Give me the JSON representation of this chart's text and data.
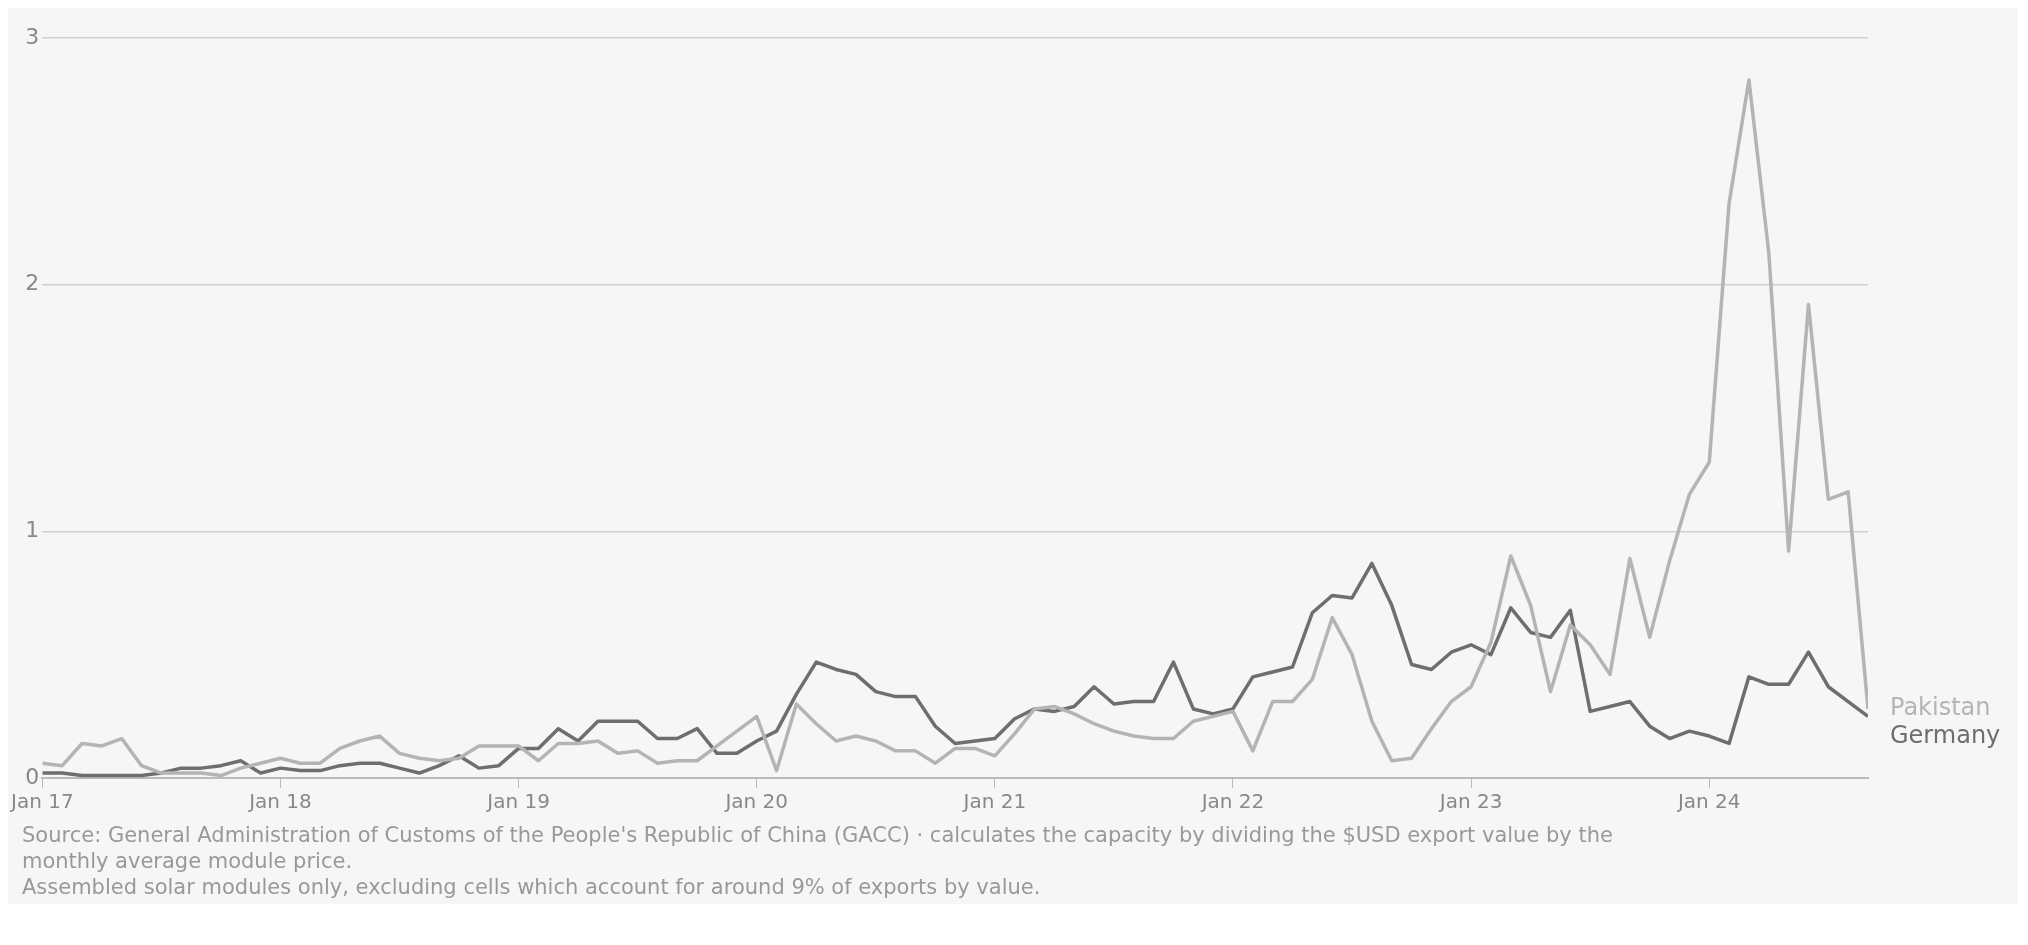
{
  "chart_data": {
    "type": "line",
    "x": [
      "2017-01",
      "2017-02",
      "2017-03",
      "2017-04",
      "2017-05",
      "2017-06",
      "2017-07",
      "2017-08",
      "2017-09",
      "2017-10",
      "2017-11",
      "2017-12",
      "2018-01",
      "2018-02",
      "2018-03",
      "2018-04",
      "2018-05",
      "2018-06",
      "2018-07",
      "2018-08",
      "2018-09",
      "2018-10",
      "2018-11",
      "2018-12",
      "2019-01",
      "2019-02",
      "2019-03",
      "2019-04",
      "2019-05",
      "2019-06",
      "2019-07",
      "2019-08",
      "2019-09",
      "2019-10",
      "2019-11",
      "2019-12",
      "2020-01",
      "2020-02",
      "2020-03",
      "2020-04",
      "2020-05",
      "2020-06",
      "2020-07",
      "2020-08",
      "2020-09",
      "2020-10",
      "2020-11",
      "2020-12",
      "2021-01",
      "2021-02",
      "2021-03",
      "2021-04",
      "2021-05",
      "2021-06",
      "2021-07",
      "2021-08",
      "2021-09",
      "2021-10",
      "2021-11",
      "2021-12",
      "2022-01",
      "2022-02",
      "2022-03",
      "2022-04",
      "2022-05",
      "2022-06",
      "2022-07",
      "2022-08",
      "2022-09",
      "2022-10",
      "2022-11",
      "2022-12",
      "2023-01",
      "2023-02",
      "2023-03",
      "2023-04",
      "2023-05",
      "2023-06",
      "2023-07",
      "2023-08",
      "2023-09",
      "2023-10",
      "2023-11",
      "2023-12",
      "2024-01",
      "2024-02",
      "2024-03",
      "2024-04",
      "2024-05",
      "2024-06",
      "2024-07",
      "2024-08",
      "2024-09"
    ],
    "series": [
      {
        "name": "Pakistan",
        "color": "#b4b4b4",
        "values": [
          0.06,
          0.05,
          0.14,
          0.13,
          0.16,
          0.05,
          0.02,
          0.02,
          0.02,
          0.01,
          0.04,
          0.06,
          0.08,
          0.06,
          0.06,
          0.12,
          0.15,
          0.17,
          0.1,
          0.08,
          0.07,
          0.08,
          0.13,
          0.13,
          0.13,
          0.07,
          0.14,
          0.14,
          0.15,
          0.1,
          0.11,
          0.06,
          0.07,
          0.07,
          0.13,
          0.19,
          0.25,
          0.03,
          0.3,
          0.22,
          0.15,
          0.17,
          0.15,
          0.11,
          0.11,
          0.06,
          0.12,
          0.12,
          0.09,
          0.18,
          0.28,
          0.29,
          0.26,
          0.22,
          0.19,
          0.17,
          0.16,
          0.16,
          0.23,
          0.25,
          0.27,
          0.11,
          0.31,
          0.31,
          0.4,
          0.65,
          0.5,
          0.23,
          0.07,
          0.08,
          0.2,
          0.31,
          0.37,
          0.55,
          0.9,
          0.7,
          0.35,
          0.62,
          0.54,
          0.42,
          0.89,
          0.57,
          0.88,
          1.15,
          1.28,
          2.33,
          2.83,
          2.13,
          0.92,
          1.92,
          1.13,
          1.16,
          0.28
        ]
      },
      {
        "name": "Germany",
        "color": "#6e6e6e",
        "values": [
          0.02,
          0.02,
          0.01,
          0.01,
          0.01,
          0.01,
          0.02,
          0.04,
          0.04,
          0.05,
          0.07,
          0.02,
          0.04,
          0.03,
          0.03,
          0.05,
          0.06,
          0.06,
          0.04,
          0.02,
          0.05,
          0.09,
          0.04,
          0.05,
          0.12,
          0.12,
          0.2,
          0.15,
          0.23,
          0.23,
          0.23,
          0.16,
          0.16,
          0.2,
          0.1,
          0.1,
          0.15,
          0.19,
          0.34,
          0.47,
          0.44,
          0.42,
          0.35,
          0.33,
          0.33,
          0.21,
          0.14,
          0.15,
          0.16,
          0.24,
          0.28,
          0.27,
          0.29,
          0.37,
          0.3,
          0.31,
          0.31,
          0.47,
          0.28,
          0.26,
          0.28,
          0.41,
          0.43,
          0.45,
          0.67,
          0.74,
          0.73,
          0.87,
          0.7,
          0.46,
          0.44,
          0.51,
          0.54,
          0.5,
          0.69,
          0.59,
          0.57,
          0.68,
          0.27,
          0.29,
          0.31,
          0.21,
          0.16,
          0.19,
          0.17,
          0.14,
          0.41,
          0.38,
          0.38,
          0.51,
          0.37,
          0.31,
          0.25
        ]
      }
    ],
    "xlim": [
      "2017-01",
      "2024-09"
    ],
    "xticks": [
      {
        "value": "2017-01",
        "label": "Jan 17"
      },
      {
        "value": "2018-01",
        "label": "Jan 18"
      },
      {
        "value": "2019-01",
        "label": "Jan 19"
      },
      {
        "value": "2020-01",
        "label": "Jan 20"
      },
      {
        "value": "2021-01",
        "label": "Jan 21"
      },
      {
        "value": "2022-01",
        "label": "Jan 22"
      },
      {
        "value": "2023-01",
        "label": "Jan 23"
      },
      {
        "value": "2024-01",
        "label": "Jan 24"
      }
    ],
    "ylim": [
      0,
      3
    ],
    "yticks": [
      0,
      1,
      2,
      3
    ],
    "grid": "y",
    "marker": "none",
    "line_style": "solid",
    "annotations": [
      "Source: General Administration of Customs of the People's Republic of China (GACC) · calculates the capacity by dividing the $USD export value by the monthly average module price.",
      "Assembled solar modules only, excluding cells which account for around 9% of exports by value."
    ]
  }
}
